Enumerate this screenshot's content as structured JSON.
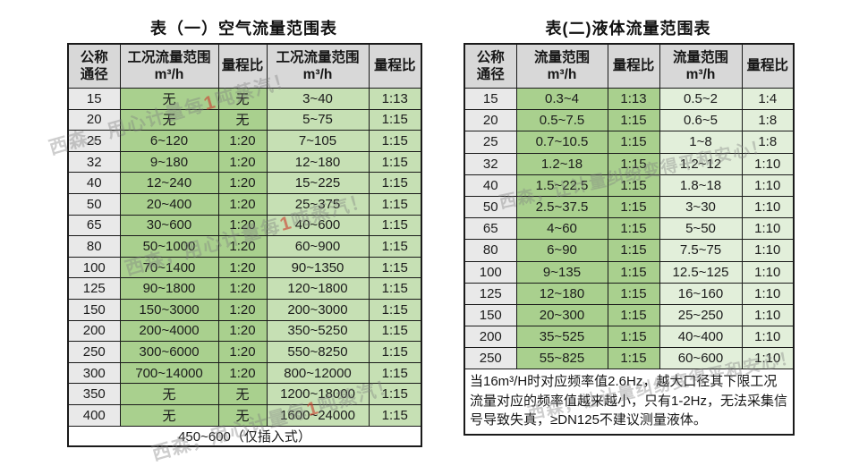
{
  "colors": {
    "header_bg": "#d8d8d8",
    "diameter_col_bg": "#e9e9e9",
    "green_medium": "#a9d08e",
    "green_light": "#c6e0b4",
    "green_pale": "#e2efda",
    "border": "#1a1a1a",
    "watermark_gray": "#7d7d7d",
    "watermark_red": "#cd4130"
  },
  "tables": [
    {
      "id": "air",
      "title": "表（一）空气流量范围表",
      "headers": [
        [
          "公称",
          "通径"
        ],
        [
          "工况流量范围",
          "m³/h"
        ],
        [
          "量程比"
        ],
        [
          "工况流量范围",
          "m³/h"
        ],
        [
          "量程比"
        ]
      ],
      "rows": [
        [
          "15",
          "无",
          "无",
          "3~40",
          "1:13"
        ],
        [
          "20",
          "无",
          "无",
          "5~75",
          "1:15"
        ],
        [
          "25",
          "6~120",
          "1:20",
          "7~105",
          "1:15"
        ],
        [
          "32",
          "9~180",
          "1:20",
          "12~180",
          "1:15"
        ],
        [
          "40",
          "12~240",
          "1:20",
          "15~225",
          "1:15"
        ],
        [
          "50",
          "20~400",
          "1:20",
          "25~375",
          "1:15"
        ],
        [
          "65",
          "30~600",
          "1:20",
          "40~600",
          "1:15"
        ],
        [
          "80",
          "50~1000",
          "1:20",
          "60~900",
          "1:15"
        ],
        [
          "100",
          "70~1400",
          "1:20",
          "90~1350",
          "1:15"
        ],
        [
          "125",
          "90~1800",
          "1:20",
          "120~1800",
          "1:15"
        ],
        [
          "150",
          "150~3000",
          "1:20",
          "200~3000",
          "1:15"
        ],
        [
          "200",
          "200~4000",
          "1:20",
          "350~5250",
          "1:15"
        ],
        [
          "250",
          "300~6000",
          "1:20",
          "550~8250",
          "1:15"
        ],
        [
          "300",
          "700~14000",
          "1:20",
          "800~12000",
          "1:15"
        ],
        [
          "350",
          "无",
          "无",
          "1200~18000",
          "1:15"
        ],
        [
          "400",
          "无",
          "无",
          "1600~24000",
          "1:15"
        ]
      ],
      "footer": "450~600（仅插入式）"
    },
    {
      "id": "liquid",
      "title": "表(二)液体流量范围表",
      "headers": [
        [
          "公称",
          "通径"
        ],
        [
          "流量范围",
          "m³/h"
        ],
        [
          "量程比"
        ],
        [
          "流量范围",
          "m³/h"
        ],
        [
          "量程比"
        ]
      ],
      "rows": [
        [
          "15",
          "0.3~4",
          "1:13",
          "0.5~2",
          "1:4"
        ],
        [
          "20",
          "0.5~7.5",
          "1:15",
          "0.6~5",
          "1:8"
        ],
        [
          "25",
          "0.7~10.5",
          "1:15",
          "1~8",
          "1:8"
        ],
        [
          "32",
          "1.2~18",
          "1:15",
          "1.2~12",
          "1:10"
        ],
        [
          "40",
          "1.5~22.5",
          "1:15",
          "1.8~18",
          "1:10"
        ],
        [
          "50",
          "2.5~37.5",
          "1:15",
          "3~30",
          "1:10"
        ],
        [
          "65",
          "4~60",
          "1:15",
          "5~50",
          "1:10"
        ],
        [
          "80",
          "6~90",
          "1:15",
          "7.5~75",
          "1:10"
        ],
        [
          "100",
          "9~135",
          "1:15",
          "12.5~125",
          "1:10"
        ],
        [
          "125",
          "12~180",
          "1:15",
          "16~160",
          "1:10"
        ],
        [
          "150",
          "20~300",
          "1:15",
          "25~250",
          "1:10"
        ],
        [
          "200",
          "35~525",
          "1:15",
          "40~400",
          "1:10"
        ],
        [
          "250",
          "55~825",
          "1:15",
          "60~600",
          "1:10"
        ]
      ],
      "note": "当16m³/H时对应频率值2.6Hz，越大口径其下限工况流量对应的频率值越来越小，只有1-2Hz，无法采集信号导致失真，≥DN125不建议测量液体。"
    }
  ],
  "watermarks": {
    "air": {
      "pre": "西森，用心计量每",
      "red": "1",
      "post": "吨蒸汽！"
    },
    "liquid": {
      "text": "西森，让计量纠纷变得平和安心！"
    }
  }
}
